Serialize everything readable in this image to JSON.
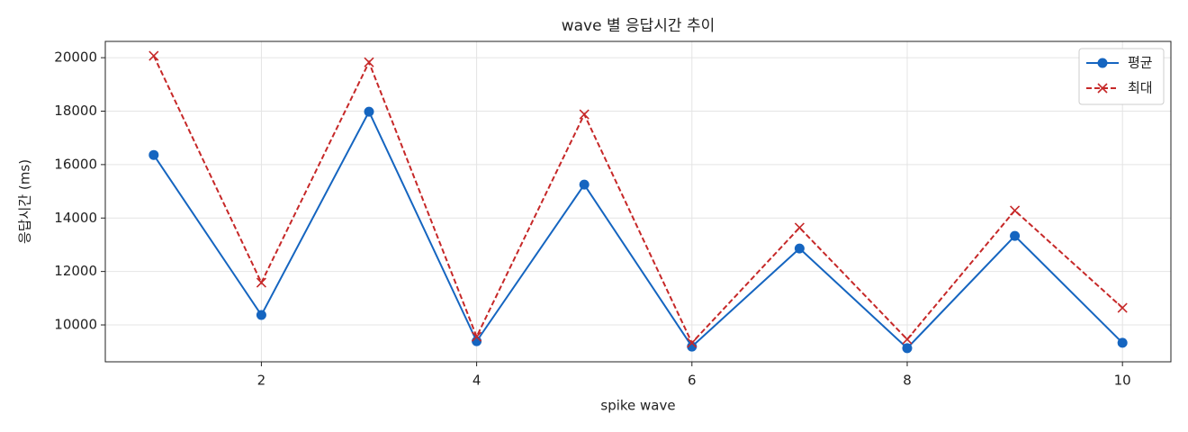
{
  "chart_data": {
    "type": "line",
    "title": "wave 별 응답시간 추이",
    "x_label": "spike wave",
    "y_label": "응답시간 (ms)",
    "x": [
      1,
      2,
      3,
      4,
      5,
      6,
      7,
      8,
      9,
      10
    ],
    "series": [
      {
        "name": "평균",
        "color": "#1565c0",
        "marker": "circle",
        "dash": false,
        "values": [
          16360,
          10370,
          17980,
          9390,
          15250,
          9190,
          12860,
          9130,
          13330,
          9330
        ]
      },
      {
        "name": "최대",
        "color": "#c62828",
        "marker": "x",
        "dash": true,
        "values": [
          20070,
          11580,
          19830,
          9560,
          17880,
          9330,
          13640,
          9460,
          14280,
          10640
        ]
      }
    ],
    "xlim": [
      0.55,
      10.45
    ],
    "xticks": [
      2,
      4,
      6,
      8,
      10
    ],
    "ylim": [
      8620,
      20610
    ],
    "yticks": [
      10000,
      12000,
      14000,
      16000,
      18000,
      20000
    ],
    "grid": true,
    "legend": "upper right"
  }
}
